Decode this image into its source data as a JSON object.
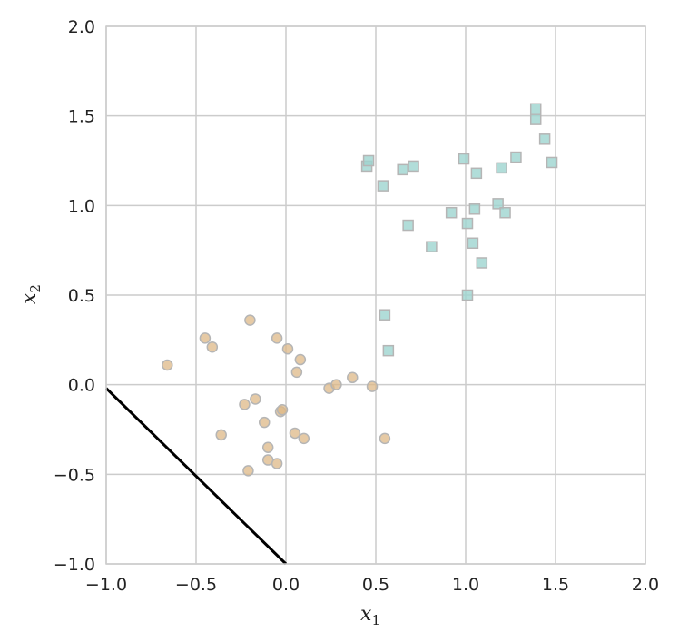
{
  "chart_data": {
    "type": "scatter",
    "xlabel": "x",
    "xlabel_sub": "1",
    "ylabel": "x",
    "ylabel_sub": "2",
    "xlim": [
      -1.0,
      2.0
    ],
    "ylim": [
      -1.0,
      2.0
    ],
    "grid": true,
    "x_ticks": [
      "−1.0",
      "−0.5",
      "0.0",
      "0.5",
      "1.0",
      "1.5",
      "2.0"
    ],
    "y_ticks": [
      "−1.0",
      "−0.5",
      "0.0",
      "0.5",
      "1.0",
      "1.5",
      "2.0"
    ],
    "series": [
      {
        "marker": "circle",
        "color": "#deb887",
        "edge_color": "#b5b5b5",
        "points": [
          [
            -0.66,
            0.11
          ],
          [
            -0.45,
            0.26
          ],
          [
            -0.41,
            0.21
          ],
          [
            -0.36,
            -0.28
          ],
          [
            -0.2,
            0.36
          ],
          [
            -0.23,
            -0.11
          ],
          [
            -0.17,
            -0.08
          ],
          [
            -0.21,
            -0.48
          ],
          [
            -0.12,
            -0.21
          ],
          [
            -0.1,
            -0.35
          ],
          [
            -0.1,
            -0.42
          ],
          [
            -0.05,
            0.26
          ],
          [
            -0.03,
            -0.15
          ],
          [
            -0.02,
            -0.14
          ],
          [
            -0.05,
            -0.44
          ],
          [
            0.01,
            0.2
          ],
          [
            0.05,
            -0.27
          ],
          [
            0.08,
            0.14
          ],
          [
            0.06,
            0.07
          ],
          [
            0.1,
            -0.3
          ],
          [
            0.24,
            -0.02
          ],
          [
            0.28,
            0.0
          ],
          [
            0.37,
            0.04
          ],
          [
            0.48,
            -0.01
          ],
          [
            0.55,
            -0.3
          ]
        ]
      },
      {
        "marker": "square",
        "color": "#9dd5cf",
        "edge_color": "#b5b5b5",
        "points": [
          [
            0.45,
            1.22
          ],
          [
            0.46,
            1.25
          ],
          [
            0.54,
            1.11
          ],
          [
            0.65,
            1.2
          ],
          [
            0.71,
            1.22
          ],
          [
            0.68,
            0.89
          ],
          [
            0.81,
            0.77
          ],
          [
            0.55,
            0.39
          ],
          [
            0.57,
            0.19
          ],
          [
            0.92,
            0.96
          ],
          [
            0.99,
            1.26
          ],
          [
            1.01,
            0.9
          ],
          [
            1.06,
            1.18
          ],
          [
            1.05,
            0.98
          ],
          [
            1.04,
            0.79
          ],
          [
            1.09,
            0.68
          ],
          [
            1.01,
            0.5
          ],
          [
            1.18,
            1.01
          ],
          [
            1.2,
            1.21
          ],
          [
            1.22,
            0.96
          ],
          [
            1.28,
            1.27
          ],
          [
            1.39,
            1.54
          ],
          [
            1.39,
            1.48
          ],
          [
            1.44,
            1.37
          ],
          [
            1.48,
            1.24
          ]
        ]
      }
    ],
    "decision_line": {
      "color": "#000000",
      "points": [
        [
          -1.0,
          -0.02
        ],
        [
          0.0,
          -1.0
        ]
      ]
    }
  }
}
